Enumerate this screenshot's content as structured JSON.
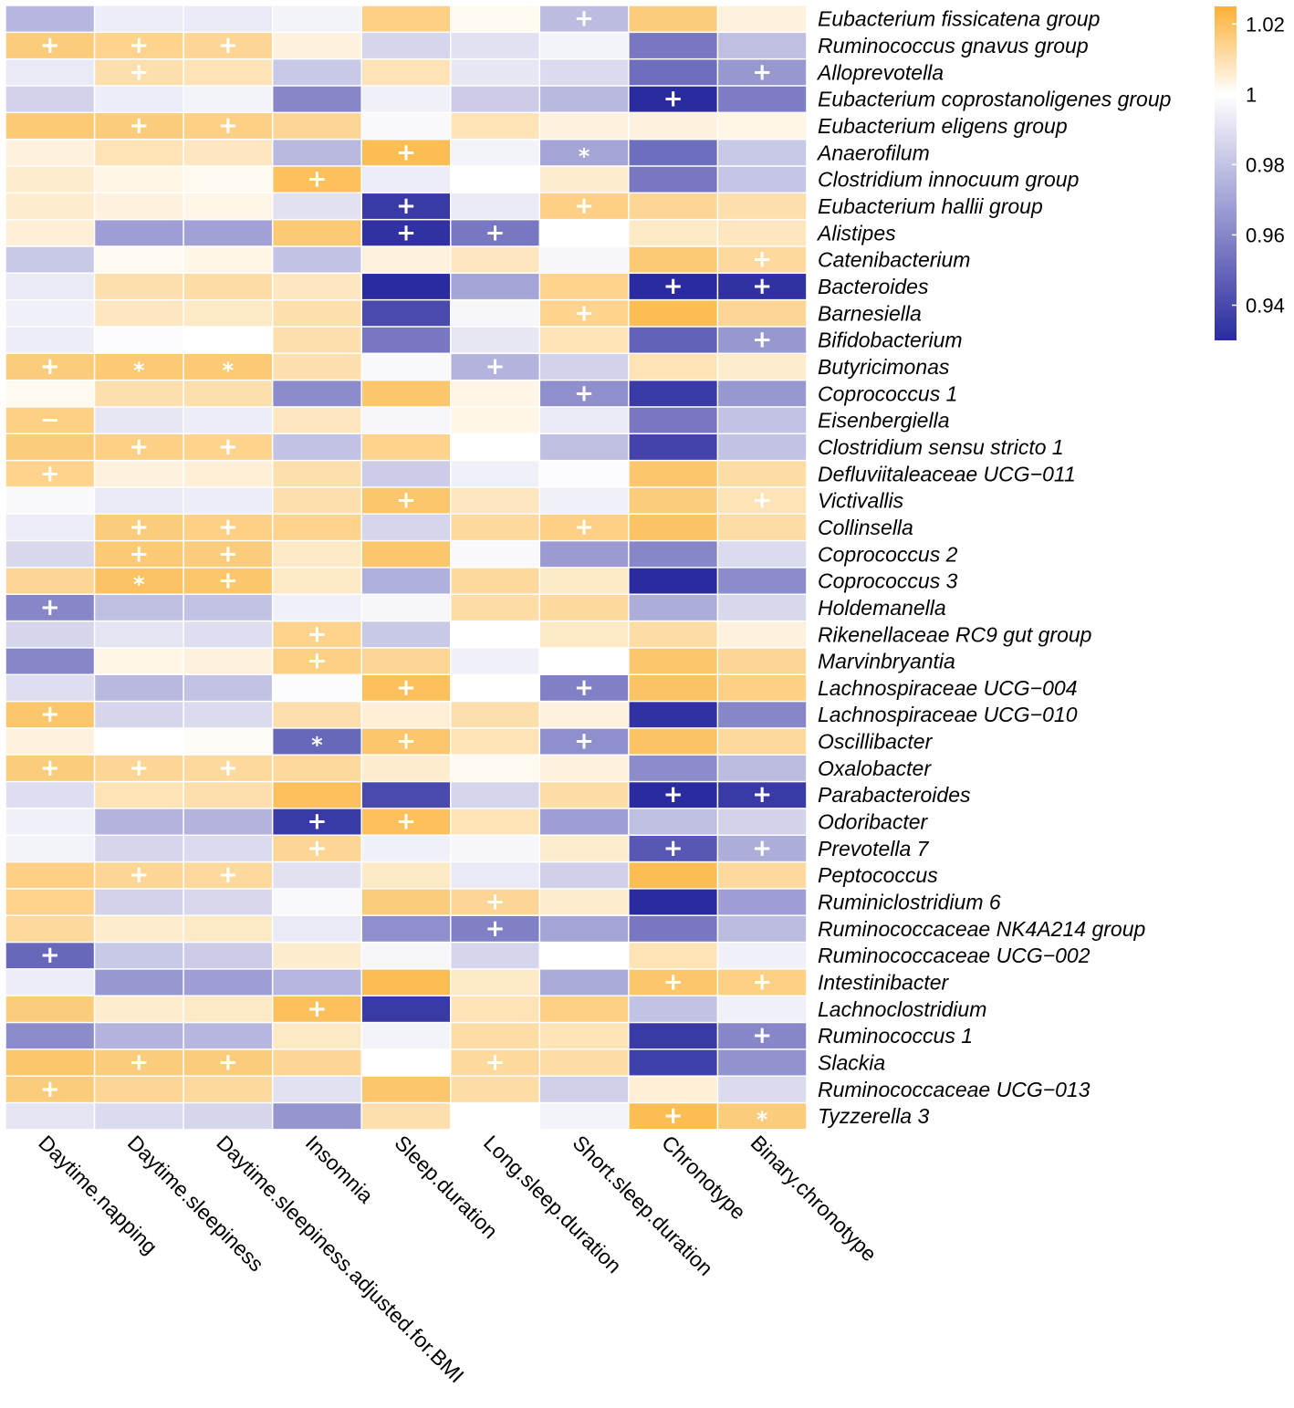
{
  "chart_data": {
    "type": "heatmap",
    "title": "",
    "columns": [
      "Daytime.napping",
      "Daytime.sleepiness",
      "Daytime.sleepiness.adjusted.for.BMI",
      "Insomnia",
      "Sleep.duration",
      "Long.sleep.duration",
      "Short.sleep.duration",
      "Chronotype",
      "Binary.chronotype"
    ],
    "rows": [
      "Eubacterium fissicatena group",
      "Ruminococcus gnavus group",
      "Alloprevotella",
      "Eubacterium coprostanoligenes group",
      "Eubacterium eligens group",
      "Anaerofilum",
      "Clostridium innocuum group",
      "Eubacterium hallii group",
      "Alistipes",
      "Catenibacterium",
      "Bacteroides",
      "Barnesiella",
      "Bifidobacterium",
      "Butyricimonas",
      "Coprococcus 1",
      "Eisenbergiella",
      "Clostridium sensu stricto 1",
      "Defluviitaleaceae UCG−011",
      "Victivallis",
      "Collinsella",
      "Coprococcus 2",
      "Coprococcus 3",
      "Holdemanella",
      "Rikenellaceae RC9 gut group",
      "Marvinbryantia",
      "Lachnospiraceae UCG−004",
      "Lachnospiraceae UCG−010",
      "Oscillibacter",
      "Oxalobacter",
      "Parabacteroides",
      "Odoribacter",
      "Prevotella 7",
      "Peptococcus",
      "Ruminiclostridium 6",
      "Ruminococcaceae NK4A214 group",
      "Ruminococcaceae UCG−002",
      "Intestinibacter",
      "Lachnoclostridium",
      "Ruminococcus 1",
      "Slackia",
      "Ruminococcaceae UCG−013",
      "Tyzzerella 3"
    ],
    "values": [
      [
        0.976,
        0.994,
        0.993,
        0.996,
        1.015,
        1.002,
        0.978,
        1.016,
        1.004
      ],
      [
        1.016,
        1.014,
        1.013,
        1.004,
        0.986,
        0.99,
        0.996,
        0.955,
        0.979
      ],
      [
        0.993,
        1.01,
        1.009,
        0.982,
        1.009,
        0.992,
        0.988,
        0.952,
        0.966
      ],
      [
        0.985,
        0.994,
        0.996,
        0.96,
        0.995,
        0.983,
        0.977,
        0.93,
        0.957
      ],
      [
        1.017,
        1.016,
        1.015,
        1.013,
        0.998,
        1.009,
        1.004,
        1.004,
        1.003
      ],
      [
        1.004,
        1.009,
        1.008,
        0.977,
        1.021,
        0.996,
        0.97,
        0.952,
        0.982
      ],
      [
        1.006,
        1.003,
        1.002,
        1.02,
        0.994,
        1.0,
        1.006,
        0.955,
        0.981
      ],
      [
        1.006,
        1.004,
        1.003,
        0.99,
        0.935,
        0.993,
        1.015,
        1.013,
        1.01
      ],
      [
        1.005,
        0.968,
        0.969,
        1.017,
        0.932,
        0.955,
        1.0,
        1.007,
        1.008
      ],
      [
        0.982,
        1.002,
        1.003,
        0.98,
        1.004,
        1.008,
        0.997,
        1.017,
        1.012
      ],
      [
        0.993,
        1.01,
        1.011,
        1.008,
        0.93,
        0.97,
        1.014,
        0.93,
        0.932
      ],
      [
        0.995,
        1.008,
        1.007,
        1.01,
        0.94,
        0.997,
        1.014,
        1.021,
        1.013
      ],
      [
        0.994,
        0.999,
        1.0,
        1.01,
        0.955,
        0.992,
        1.009,
        0.948,
        0.966
      ],
      [
        1.016,
        1.017,
        1.017,
        1.01,
        0.998,
        0.975,
        0.985,
        1.009,
        1.006
      ],
      [
        1.002,
        1.01,
        1.01,
        0.962,
        1.018,
        1.003,
        0.963,
        0.935,
        0.966
      ],
      [
        1.015,
        0.992,
        0.994,
        1.008,
        0.997,
        1.003,
        0.993,
        0.955,
        0.98
      ],
      [
        1.016,
        1.015,
        1.014,
        0.98,
        1.014,
        1.0,
        0.979,
        0.938,
        0.98
      ],
      [
        1.014,
        1.004,
        1.005,
        1.01,
        0.983,
        0.995,
        0.999,
        1.018,
        1.011
      ],
      [
        0.998,
        0.993,
        0.994,
        1.01,
        1.018,
        1.008,
        0.995,
        1.016,
        1.009
      ],
      [
        0.994,
        1.016,
        1.015,
        1.014,
        0.986,
        1.012,
        1.015,
        1.019,
        1.011
      ],
      [
        0.987,
        1.017,
        1.016,
        1.007,
        1.018,
        0.998,
        0.967,
        0.96,
        0.988
      ],
      [
        1.013,
        1.019,
        1.018,
        1.007,
        0.974,
        1.012,
        1.007,
        0.93,
        0.962
      ],
      [
        0.96,
        0.979,
        0.98,
        0.995,
        0.997,
        1.011,
        1.012,
        0.973,
        0.987
      ],
      [
        0.986,
        0.991,
        0.989,
        1.014,
        0.982,
        1.0,
        1.007,
        1.011,
        1.004
      ],
      [
        0.96,
        1.003,
        1.004,
        1.015,
        1.013,
        0.995,
        1.0,
        1.018,
        1.013
      ],
      [
        0.989,
        0.977,
        0.98,
        0.999,
        1.02,
        1.0,
        0.958,
        1.019,
        1.015
      ],
      [
        1.018,
        0.986,
        0.988,
        1.01,
        1.005,
        1.01,
        1.004,
        0.932,
        0.96
      ],
      [
        1.004,
        1.0,
        1.001,
        0.95,
        1.018,
        1.009,
        0.963,
        1.019,
        1.012
      ],
      [
        1.016,
        1.013,
        1.012,
        1.012,
        1.006,
        1.002,
        1.004,
        0.962,
        0.978
      ],
      [
        0.989,
        1.009,
        1.01,
        1.02,
        0.94,
        0.986,
        1.011,
        0.93,
        0.935
      ],
      [
        0.995,
        0.975,
        0.975,
        0.935,
        1.02,
        1.009,
        0.968,
        0.979,
        0.985
      ],
      [
        0.996,
        0.986,
        0.988,
        1.013,
        0.995,
        0.997,
        1.006,
        0.945,
        0.973
      ],
      [
        1.015,
        1.013,
        1.012,
        0.99,
        1.007,
        0.993,
        0.984,
        1.021,
        1.012
      ],
      [
        1.014,
        0.985,
        0.987,
        0.998,
        1.016,
        1.013,
        1.006,
        0.93,
        0.968
      ],
      [
        1.012,
        1.006,
        1.007,
        0.993,
        0.963,
        0.958,
        0.97,
        0.955,
        0.978
      ],
      [
        0.95,
        0.982,
        0.983,
        1.006,
        0.997,
        0.986,
        1.0,
        1.009,
        0.995
      ],
      [
        0.994,
        0.966,
        0.968,
        0.976,
        1.021,
        1.007,
        0.972,
        1.018,
        1.015
      ],
      [
        1.016,
        1.006,
        1.007,
        1.02,
        0.935,
        1.009,
        1.015,
        0.98,
        0.995
      ],
      [
        0.962,
        0.975,
        0.976,
        1.007,
        0.996,
        1.011,
        1.009,
        0.935,
        0.96
      ],
      [
        1.018,
        1.016,
        1.016,
        1.013,
        1.0,
        1.012,
        1.011,
        0.937,
        0.964
      ],
      [
        1.016,
        1.013,
        1.012,
        0.99,
        1.018,
        1.011,
        0.984,
        1.005,
        0.988
      ],
      [
        0.991,
        0.988,
        0.986,
        0.965,
        1.01,
        1.0,
        0.996,
        1.021,
        1.016
      ]
    ],
    "annotations": [
      [
        "",
        "",
        "",
        "",
        "",
        "",
        "+",
        "",
        ""
      ],
      [
        "+",
        "+",
        "+",
        "",
        "",
        "",
        "",
        "",
        ""
      ],
      [
        "",
        "+",
        "",
        "",
        "",
        "",
        "",
        "",
        "+"
      ],
      [
        "",
        "",
        "",
        "",
        "",
        "",
        "",
        "+",
        ""
      ],
      [
        "",
        "+",
        "+",
        "",
        "",
        "",
        "",
        "",
        ""
      ],
      [
        "",
        "",
        "",
        "",
        "+",
        "",
        "*",
        "",
        ""
      ],
      [
        "",
        "",
        "",
        "+",
        "",
        "",
        "",
        "",
        ""
      ],
      [
        "",
        "",
        "",
        "",
        "+",
        "",
        "+",
        "",
        ""
      ],
      [
        "",
        "",
        "",
        "",
        "+",
        "+",
        "",
        "",
        ""
      ],
      [
        "",
        "",
        "",
        "",
        "",
        "",
        "",
        "",
        "+"
      ],
      [
        "",
        "",
        "",
        "",
        "",
        "",
        "",
        "+",
        "+"
      ],
      [
        "",
        "",
        "",
        "",
        "",
        "",
        "+",
        "",
        ""
      ],
      [
        "",
        "",
        "",
        "",
        "",
        "",
        "",
        "",
        "+"
      ],
      [
        "+",
        "*",
        "*",
        "",
        "",
        "+",
        "",
        "",
        ""
      ],
      [
        "",
        "",
        "",
        "",
        "",
        "",
        "+",
        "",
        ""
      ],
      [
        "−",
        "",
        "",
        "",
        "",
        "",
        "",
        "",
        ""
      ],
      [
        "",
        "+",
        "+",
        "",
        "",
        "",
        "",
        "",
        ""
      ],
      [
        "+",
        "",
        "",
        "",
        "",
        "",
        "",
        "",
        ""
      ],
      [
        "",
        "",
        "",
        "",
        "+",
        "",
        "",
        "",
        "+"
      ],
      [
        "",
        "+",
        "+",
        "",
        "",
        "",
        "+",
        "",
        ""
      ],
      [
        "",
        "+",
        "+",
        "",
        "",
        "",
        "",
        "",
        ""
      ],
      [
        "",
        "*",
        "+",
        "",
        "",
        "",
        "",
        "",
        ""
      ],
      [
        "+",
        "",
        "",
        "",
        "",
        "",
        "",
        "",
        ""
      ],
      [
        "",
        "",
        "",
        "+",
        "",
        "",
        "",
        "",
        ""
      ],
      [
        "",
        "",
        "",
        "+",
        "",
        "",
        "",
        "",
        ""
      ],
      [
        "",
        "",
        "",
        "",
        "+",
        "",
        "+",
        "",
        ""
      ],
      [
        "+",
        "",
        "",
        "",
        "",
        "",
        "",
        "",
        ""
      ],
      [
        "",
        "",
        "",
        "*",
        "+",
        "",
        "+",
        "",
        ""
      ],
      [
        "+",
        "+",
        "+",
        "",
        "",
        "",
        "",
        "",
        ""
      ],
      [
        "",
        "",
        "",
        "",
        "",
        "",
        "",
        "+",
        "+"
      ],
      [
        "",
        "",
        "",
        "+",
        "+",
        "",
        "",
        "",
        ""
      ],
      [
        "",
        "",
        "",
        "+",
        "",
        "",
        "",
        "+",
        "+"
      ],
      [
        "",
        "+",
        "+",
        "",
        "",
        "",
        "",
        "",
        ""
      ],
      [
        "",
        "",
        "",
        "",
        "",
        "+",
        "",
        "",
        ""
      ],
      [
        "",
        "",
        "",
        "",
        "",
        "+",
        "",
        "",
        ""
      ],
      [
        "+",
        "",
        "",
        "",
        "",
        "",
        "",
        "",
        ""
      ],
      [
        "",
        "",
        "",
        "",
        "",
        "",
        "",
        "+",
        "+"
      ],
      [
        "",
        "",
        "",
        "+",
        "",
        "",
        "",
        "",
        ""
      ],
      [
        "",
        "",
        "",
        "",
        "",
        "",
        "",
        "",
        "+"
      ],
      [
        "",
        "+",
        "+",
        "",
        "",
        "+",
        "",
        "",
        ""
      ],
      [
        "+",
        "",
        "",
        "",
        "",
        "",
        "",
        "",
        ""
      ],
      [
        "",
        "",
        "",
        "",
        "",
        "",
        "",
        "+",
        "*"
      ]
    ],
    "color_scale": {
      "min": 0.93,
      "mid": 1.0,
      "max": 1.025,
      "low_color": "#2B2BA0",
      "mid_color": "#FFFFFF",
      "high_color": "#FBB034"
    },
    "legend": {
      "position": "right",
      "ticks": [
        {
          "value": 1.02,
          "label": "1.02"
        },
        {
          "value": 1.0,
          "label": "1"
        },
        {
          "value": 0.98,
          "label": "0.98"
        },
        {
          "value": 0.96,
          "label": "0.96"
        },
        {
          "value": 0.94,
          "label": "0.94"
        }
      ]
    },
    "xlabel": "",
    "ylabel": ""
  }
}
